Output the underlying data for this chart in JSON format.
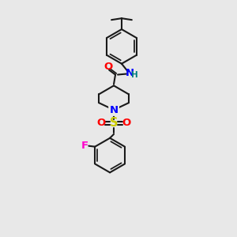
{
  "bg_color": "#e8e8e8",
  "bond_color": "#1a1a1a",
  "bond_width": 1.5,
  "atom_colors": {
    "N": "#0000ff",
    "O": "#ff0000",
    "F": "#ff00cc",
    "S": "#cccc00",
    "H": "#008080",
    "C": "#1a1a1a"
  },
  "font_size": 8.5,
  "fig_size": [
    3.0,
    3.0
  ],
  "dpi": 100
}
